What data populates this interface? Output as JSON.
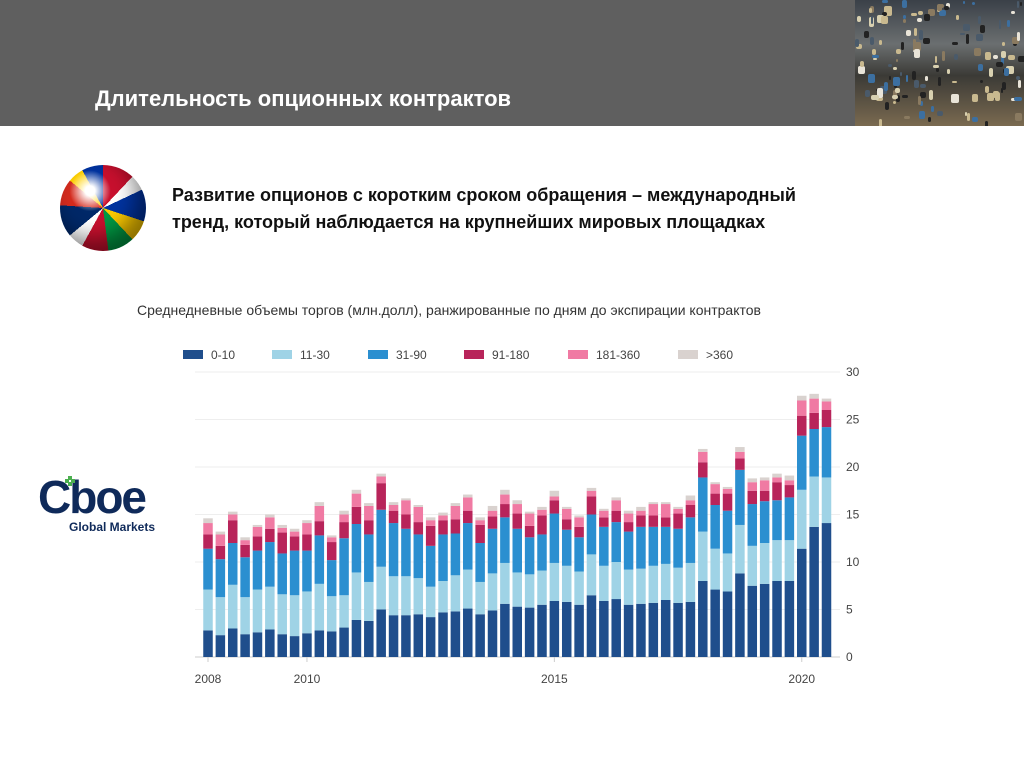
{
  "header": {
    "title": "Длительность опционных контрактов"
  },
  "lead": {
    "line1": "Развитие опционов с коротким сроком обращения – международный",
    "line2": "тренд, который наблюдается на крупнейших мировых площадках"
  },
  "logo": {
    "word": "Cboe",
    "sub": "Global Markets"
  },
  "icons": {
    "globe": "flags-globe-icon",
    "photo": "trading-floor-photo"
  },
  "chart_data": {
    "type": "bar",
    "stacked": true,
    "title": "Среднедневные объемы торгов (млн.долл), ранжированные по дням до экспирации контрактов",
    "xlabel": "",
    "ylabel": "",
    "ylim": [
      0,
      30
    ],
    "yticks": [
      0,
      5,
      10,
      15,
      20,
      25,
      30
    ],
    "xticks": [
      {
        "label": "2008",
        "index": 0
      },
      {
        "label": "2010",
        "index": 8
      },
      {
        "label": "2015",
        "index": 28
      },
      {
        "label": "2020",
        "index": 48
      }
    ],
    "grid": true,
    "legend_position": "top",
    "categories_note": "quarterly, 2008Q1–2020Q3",
    "series": [
      {
        "name": "0-10",
        "color": "#1f4e8c",
        "values": [
          2.8,
          2.3,
          3.0,
          2.4,
          2.6,
          2.9,
          2.4,
          2.2,
          2.5,
          2.8,
          2.7,
          3.1,
          3.9,
          3.8,
          5.0,
          4.4,
          4.4,
          4.5,
          4.2,
          4.7,
          4.8,
          5.1,
          4.5,
          4.9,
          5.6,
          5.3,
          5.2,
          5.5,
          5.9,
          5.8,
          5.5,
          6.5,
          5.9,
          6.1,
          5.5,
          5.6,
          5.7,
          6.0,
          5.7,
          5.8,
          8.0,
          7.1,
          6.9,
          8.8,
          7.5,
          7.7,
          8.0,
          8.0,
          11.4,
          13.7,
          14.1
        ]
      },
      {
        "name": "11-30",
        "color": "#9fd3e6",
        "values": [
          4.3,
          4.0,
          4.6,
          3.9,
          4.5,
          4.5,
          4.2,
          4.3,
          4.4,
          4.9,
          3.7,
          3.4,
          5.0,
          4.1,
          4.5,
          4.1,
          4.1,
          3.8,
          3.2,
          3.3,
          3.8,
          4.1,
          3.4,
          3.9,
          4.3,
          3.6,
          3.5,
          3.6,
          4.0,
          3.8,
          3.5,
          4.3,
          3.7,
          3.9,
          3.7,
          3.7,
          3.9,
          3.8,
          3.7,
          4.1,
          5.2,
          4.3,
          4.0,
          5.1,
          4.2,
          4.3,
          4.3,
          4.3,
          6.2,
          5.3,
          4.8
        ]
      },
      {
        "name": "31-90",
        "color": "#2b8fd0",
        "values": [
          4.3,
          4.0,
          4.4,
          4.2,
          4.1,
          4.7,
          4.3,
          4.7,
          4.3,
          5.1,
          3.8,
          6.0,
          5.1,
          5.0,
          6.0,
          5.6,
          5.0,
          4.6,
          4.3,
          4.9,
          4.4,
          4.9,
          4.1,
          4.7,
          4.8,
          4.6,
          3.9,
          3.8,
          5.2,
          3.8,
          3.6,
          4.2,
          4.1,
          4.2,
          4.0,
          4.4,
          4.1,
          3.9,
          4.1,
          4.8,
          5.7,
          4.6,
          4.5,
          5.8,
          4.4,
          4.4,
          4.2,
          4.5,
          5.7,
          5.0,
          5.3
        ]
      },
      {
        "name": "91-180",
        "color": "#b8245a",
        "values": [
          1.5,
          1.4,
          2.4,
          1.3,
          1.5,
          1.4,
          2.2,
          1.5,
          1.7,
          1.5,
          1.9,
          1.7,
          1.8,
          1.5,
          2.8,
          1.3,
          1.5,
          1.3,
          2.1,
          1.5,
          1.5,
          1.3,
          1.9,
          1.3,
          1.4,
          1.6,
          1.2,
          2.0,
          1.4,
          1.1,
          1.1,
          1.9,
          1.0,
          1.2,
          1.0,
          1.2,
          1.2,
          1.0,
          1.6,
          1.3,
          1.6,
          1.2,
          1.8,
          1.2,
          1.4,
          1.1,
          1.9,
          1.3,
          2.1,
          1.7,
          1.8
        ]
      },
      {
        "name": "181-360",
        "color": "#f07aa3",
        "values": [
          1.2,
          1.2,
          0.6,
          0.5,
          1.0,
          1.2,
          0.5,
          0.5,
          1.2,
          1.6,
          0.5,
          0.8,
          1.4,
          1.5,
          0.7,
          0.6,
          1.5,
          1.6,
          0.6,
          0.5,
          1.4,
          1.4,
          0.5,
          0.6,
          1.0,
          1.0,
          1.3,
          0.6,
          0.4,
          1.1,
          1.0,
          0.6,
          0.7,
          1.1,
          0.9,
          0.5,
          1.2,
          1.4,
          0.5,
          0.5,
          1.1,
          1.0,
          0.5,
          0.7,
          0.9,
          1.1,
          0.5,
          0.5,
          1.6,
          1.5,
          0.9
        ]
      },
      {
        "name": ">360",
        "color": "#d9d2cf",
        "values": [
          0.5,
          0.3,
          0.3,
          0.3,
          0.2,
          0.3,
          0.3,
          0.3,
          0.3,
          0.4,
          0.2,
          0.4,
          0.4,
          0.3,
          0.3,
          0.3,
          0.2,
          0.2,
          0.3,
          0.3,
          0.3,
          0.3,
          0.3,
          0.5,
          0.5,
          0.4,
          0.2,
          0.3,
          0.6,
          0.2,
          0.2,
          0.3,
          0.2,
          0.3,
          0.3,
          0.4,
          0.2,
          0.2,
          0.2,
          0.5,
          0.3,
          0.2,
          0.2,
          0.5,
          0.4,
          0.3,
          0.4,
          0.5,
          0.5,
          0.5,
          0.3
        ]
      }
    ]
  }
}
